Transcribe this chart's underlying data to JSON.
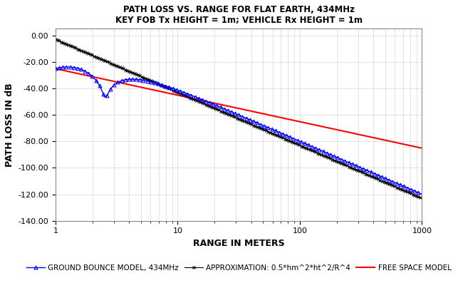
{
  "title_line1": "PATH LOSS VS. RANGE FOR FLAT EARTH, 434MHz",
  "title_line2": "KEY FOB Tx HEIGHT = 1m; VEHICLE Rx HEIGHT = 1m",
  "xlabel": "RANGE IN METERS",
  "ylabel": "PATH LOSS IN dB",
  "freq_MHz": 434,
  "ht_m": 1,
  "hr_m": 1,
  "xlim": [
    1,
    1000
  ],
  "ylim": [
    -140,
    5
  ],
  "yticks": [
    0,
    -20,
    -40,
    -60,
    -80,
    -100,
    -120,
    -140
  ],
  "ytick_labels": [
    "0.00",
    "-20.00",
    "-40.00",
    "-60.00",
    "-80.00",
    "-100.00",
    "-120.00",
    "-140.00"
  ],
  "xticks": [
    1,
    10,
    100,
    1000
  ],
  "color_ground": "#0000FF",
  "color_approx": "#000000",
  "color_free": "#FF0000",
  "legend_ground": "GROUND BOUNCE MODEL, 434MHz",
  "legend_approx": "APPROXIMATION: 0.5*hm^2*ht^2/R^4",
  "legend_free": "FREE SPACE MODEL",
  "background_color": "#FFFFFF",
  "title_fontsize": 8.5,
  "label_fontsize": 9,
  "tick_fontsize": 8,
  "legend_fontsize": 7.5
}
